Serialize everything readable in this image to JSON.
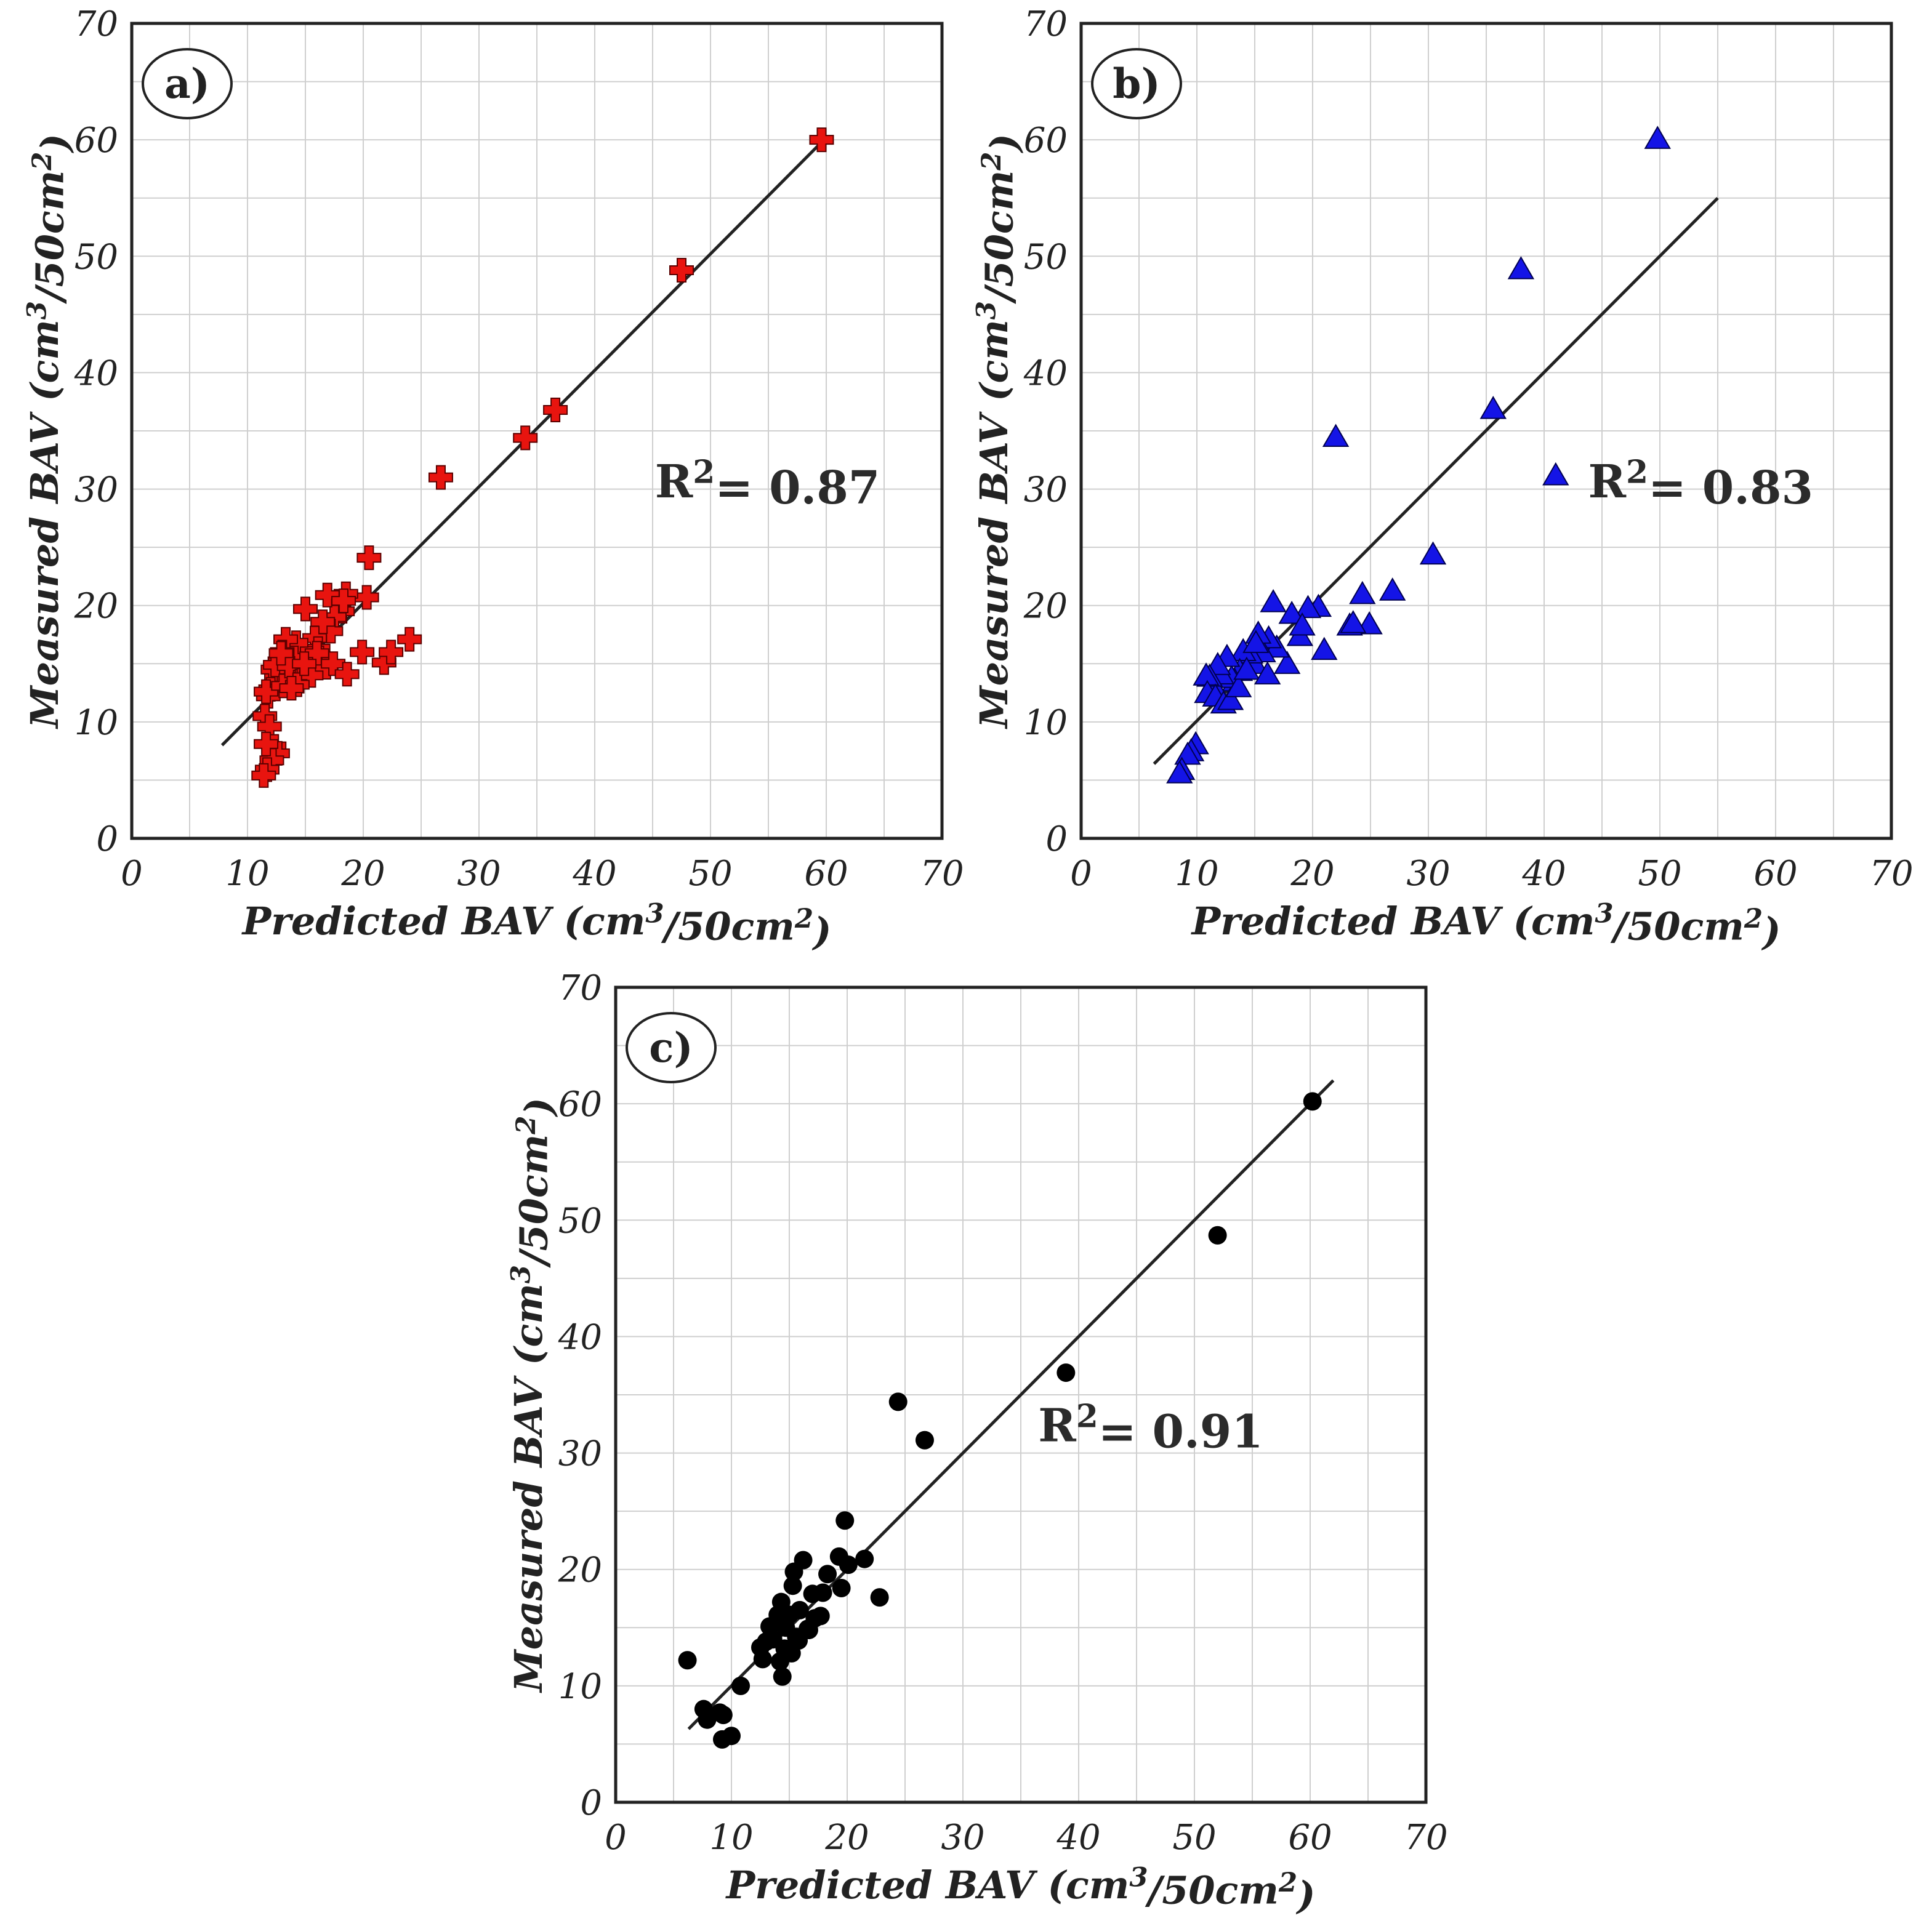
{
  "chart_data": [
    {
      "type": "scatter",
      "panel_label": "a)",
      "xlabel": "Predicted BAV (cm³/50cm²)",
      "ylabel": "Measured BAV (cm³/50cm²)",
      "xlim": [
        0,
        70
      ],
      "ylim": [
        0,
        70
      ],
      "xticks": [
        "0",
        "10",
        "20",
        "30",
        "40",
        "50",
        "60",
        "70"
      ],
      "yticks": [
        "0",
        "10",
        "20",
        "30",
        "40",
        "50",
        "60",
        "70"
      ],
      "grid": true,
      "annotation": "R²= 0.87",
      "marker": "cross",
      "color": "#e8140f",
      "fit_line": [
        [
          7.8,
          8.0
        ],
        [
          59.8,
          60.0
        ]
      ],
      "x": [
        59.6,
        47.5,
        36.6,
        34.0,
        26.7,
        20.5,
        20.3,
        18.5,
        17.9,
        18.2,
        17.5,
        16.9,
        17.2,
        16.5,
        15.8,
        16.1,
        15.0,
        14.8,
        14.2,
        14.0,
        13.7,
        13.3,
        13.0,
        12.8,
        12.5,
        12.2,
        12.0,
        11.8,
        11.6,
        11.5,
        11.9,
        12.3,
        12.6,
        12.1,
        11.7,
        11.4,
        11.6,
        12.4,
        13.1,
        13.6,
        14.5,
        15.3,
        16.2,
        16.8,
        17.4,
        18.6,
        19.9,
        21.8,
        22.4,
        24.0,
        15.5,
        14.3,
        13.8,
        12.9,
        18.3,
        16.0,
        14.9
      ],
      "y": [
        60.0,
        48.8,
        36.8,
        34.4,
        31.0,
        24.1,
        20.7,
        21.0,
        20.3,
        19.5,
        19.0,
        20.9,
        17.8,
        18.6,
        17.2,
        16.3,
        19.7,
        16.1,
        16.8,
        15.5,
        14.6,
        17.1,
        16.0,
        15.2,
        13.8,
        14.5,
        12.8,
        12.2,
        12.6,
        10.5,
        9.6,
        7.9,
        7.3,
        6.7,
        5.9,
        5.4,
        8.1,
        14.9,
        13.1,
        14.8,
        13.5,
        14.2,
        15.5,
        14.7,
        15.0,
        14.1,
        16.0,
        15.1,
        16.0,
        17.1,
        14.0,
        13.2,
        12.9,
        15.9,
        20.4,
        15.9,
        15.0
      ]
    },
    {
      "type": "scatter",
      "panel_label": "b)",
      "xlabel": "Predicted BAV (cm³/50cm²)",
      "ylabel": "Measured BAV (cm³/50cm²)",
      "xlim": [
        0,
        70
      ],
      "ylim": [
        0,
        70
      ],
      "xticks": [
        "0",
        "10",
        "20",
        "30",
        "40",
        "50",
        "60",
        "70"
      ],
      "yticks": [
        "0",
        "10",
        "20",
        "30",
        "40",
        "50",
        "60",
        "70"
      ],
      "grid": true,
      "annotation": "R²= 0.83",
      "marker": "triangle",
      "color": "#1414e6",
      "fit_line": [
        [
          6.3,
          6.4
        ],
        [
          55.0,
          55.0
        ]
      ],
      "x": [
        49.8,
        38.0,
        35.6,
        41.0,
        22.0,
        30.4,
        26.9,
        24.3,
        24.9,
        23.2,
        23.5,
        21.0,
        20.5,
        19.6,
        18.2,
        18.9,
        19.1,
        17.8,
        16.6,
        16.9,
        16.2,
        15.7,
        15.3,
        15.0,
        14.6,
        14.0,
        13.7,
        13.3,
        13.0,
        12.6,
        12.1,
        11.8,
        11.4,
        11.1,
        10.8,
        10.9,
        11.6,
        12.3,
        12.9,
        13.6,
        14.3,
        15.1,
        16.1,
        9.9,
        9.5,
        9.2,
        8.7,
        8.5
      ],
      "y": [
        60.1,
        48.9,
        36.9,
        31.2,
        34.5,
        24.4,
        21.3,
        21.0,
        18.4,
        18.3,
        18.5,
        16.2,
        19.9,
        19.8,
        19.3,
        17.4,
        18.3,
        15.0,
        20.3,
        16.4,
        17.2,
        16.0,
        17.6,
        15.0,
        15.9,
        16.1,
        14.4,
        13.5,
        13.8,
        15.6,
        14.1,
        14.9,
        13.2,
        13.9,
        14.0,
        12.5,
        12.2,
        11.6,
        11.9,
        13.0,
        14.5,
        16.8,
        14.1,
        8.1,
        7.5,
        7.2,
        5.9,
        5.6
      ]
    },
    {
      "type": "scatter",
      "panel_label": "c)",
      "xlabel": "Predicted BAV (cm³/50cm²)",
      "ylabel": "Measured BAV (cm³/50cm²)",
      "xlim": [
        0,
        70
      ],
      "ylim": [
        0,
        70
      ],
      "xticks": [
        "0",
        "10",
        "20",
        "30",
        "40",
        "50",
        "60",
        "70"
      ],
      "yticks": [
        "0",
        "10",
        "20",
        "30",
        "40",
        "50",
        "60",
        "70"
      ],
      "grid": true,
      "annotation": "R²= 0.91",
      "marker": "circle",
      "color": "#000000",
      "fit_line": [
        [
          6.3,
          6.3
        ],
        [
          62.0,
          62.0
        ]
      ],
      "x": [
        60.2,
        52.0,
        38.9,
        24.4,
        26.7,
        22.8,
        19.8,
        21.5,
        20.1,
        19.3,
        19.5,
        18.3,
        17.9,
        17.7,
        17.0,
        16.7,
        16.2,
        15.9,
        15.4,
        15.3,
        15.6,
        15.0,
        14.7,
        14.3,
        14.0,
        13.6,
        13.3,
        13.0,
        12.7,
        12.5,
        14.2,
        14.6,
        14.4,
        15.2,
        15.8,
        16.6,
        17.2,
        6.2,
        7.6,
        7.9,
        9.3,
        9.0,
        10.8,
        10.0,
        9.2
      ],
      "y": [
        60.2,
        48.7,
        36.9,
        34.4,
        31.1,
        17.6,
        24.2,
        20.9,
        20.4,
        21.1,
        18.4,
        19.6,
        18.0,
        16.0,
        17.9,
        14.8,
        20.8,
        16.5,
        19.8,
        18.6,
        14.2,
        16.1,
        15.0,
        17.2,
        16.1,
        14.0,
        15.1,
        13.8,
        12.3,
        13.3,
        12.1,
        13.2,
        10.8,
        12.8,
        13.9,
        14.9,
        15.8,
        12.2,
        8.0,
        7.1,
        7.5,
        7.7,
        10.0,
        5.7,
        5.4
      ]
    }
  ]
}
